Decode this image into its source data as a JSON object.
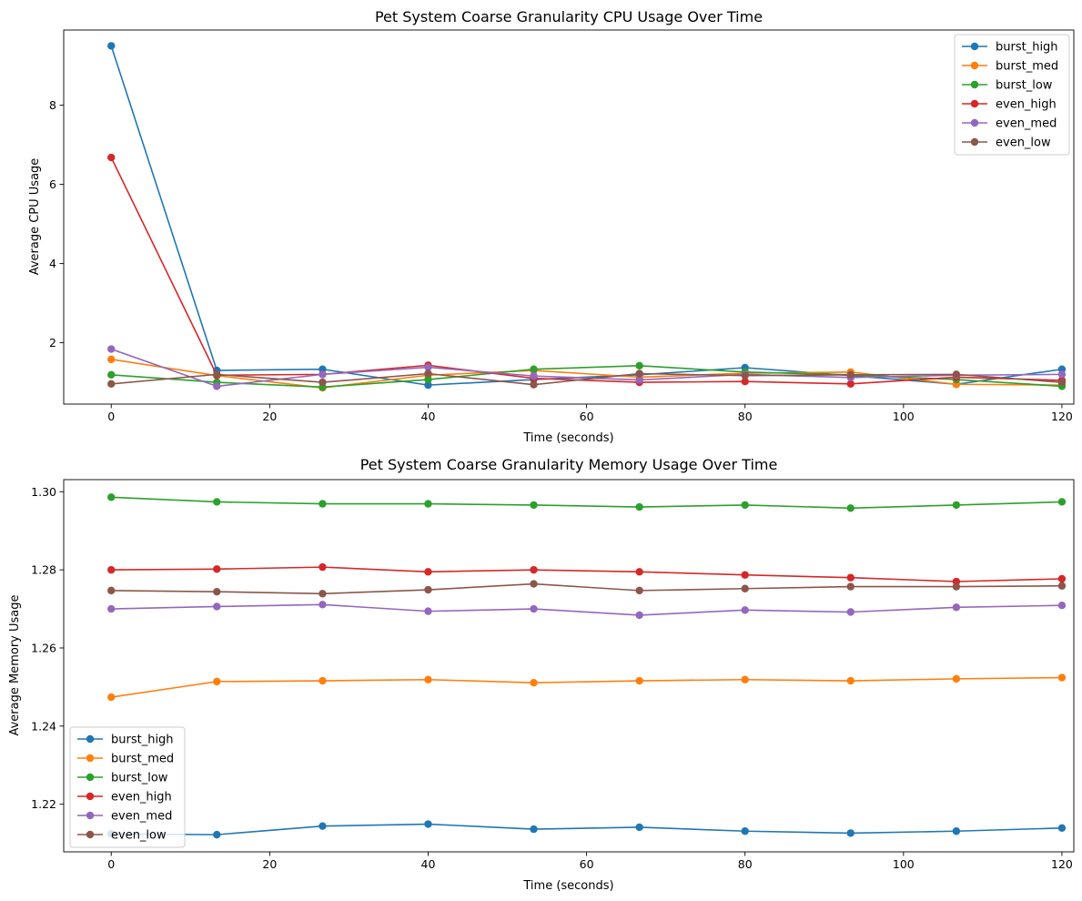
{
  "chart_data": [
    {
      "type": "line",
      "title": "Pet System Coarse Granularity CPU Usage Over Time",
      "xlabel": "Time (seconds)",
      "ylabel": "Average CPU Usage",
      "xlim": [
        -6,
        121.5
      ],
      "ylim": [
        0.45,
        9.9
      ],
      "xticks": [
        0,
        20,
        40,
        60,
        80,
        100,
        120
      ],
      "yticks": [
        2,
        4,
        6,
        8
      ],
      "ytick_decimals": 0,
      "grid": false,
      "legend_position": "upper right",
      "x": [
        0,
        13.33,
        26.67,
        40,
        53.33,
        66.67,
        80,
        93.33,
        106.67,
        120
      ],
      "series": [
        {
          "name": "burst_high",
          "color": "#1f77b4",
          "values": [
            9.5,
            1.3,
            1.33,
            0.93,
            1.07,
            1.19,
            1.37,
            1.17,
            0.95,
            1.33
          ]
        },
        {
          "name": "burst_med",
          "color": "#ff7f0e",
          "values": [
            1.58,
            1.17,
            0.86,
            1.18,
            1.3,
            1.13,
            1.23,
            1.26,
            0.95,
            0.93
          ]
        },
        {
          "name": "burst_low",
          "color": "#2ca02c",
          "values": [
            1.19,
            1.0,
            0.88,
            1.07,
            1.33,
            1.42,
            1.26,
            1.19,
            1.07,
            0.9
          ]
        },
        {
          "name": "even_high",
          "color": "#d62728",
          "values": [
            6.68,
            1.18,
            1.2,
            1.43,
            1.1,
            1.0,
            1.02,
            0.96,
            1.13,
            1.05
          ]
        },
        {
          "name": "even_med",
          "color": "#9467bd",
          "values": [
            1.84,
            0.9,
            1.2,
            1.38,
            1.16,
            1.06,
            1.2,
            1.12,
            1.18,
            1.2
          ]
        },
        {
          "name": "even_low",
          "color": "#8c564b",
          "values": [
            0.96,
            1.2,
            1.0,
            1.22,
            0.94,
            1.22,
            1.17,
            1.19,
            1.2,
            1.0
          ]
        }
      ]
    },
    {
      "type": "line",
      "title": "Pet System Coarse Granularity Memory Usage Over Time",
      "xlabel": "Time (seconds)",
      "ylabel": "Average Memory Usage",
      "xlim": [
        -6,
        121.5
      ],
      "ylim": [
        1.2078,
        1.3031
      ],
      "xticks": [
        0,
        20,
        40,
        60,
        80,
        100,
        120
      ],
      "yticks": [
        1.22,
        1.24,
        1.26,
        1.28,
        1.3
      ],
      "ytick_decimals": 2,
      "grid": false,
      "legend_position": "lower left",
      "x": [
        0,
        13.33,
        26.67,
        40,
        53.33,
        66.67,
        80,
        93.33,
        106.67,
        120
      ],
      "series": [
        {
          "name": "burst_high",
          "color": "#1f77b4",
          "values": [
            1.2124,
            1.2122,
            1.2144,
            1.2149,
            1.2136,
            1.2141,
            1.2131,
            1.2126,
            1.2131,
            1.2139
          ]
        },
        {
          "name": "burst_med",
          "color": "#ff7f0e",
          "values": [
            1.2474,
            1.2514,
            1.2516,
            1.2519,
            1.2511,
            1.2516,
            1.2519,
            1.2516,
            1.2521,
            1.2524
          ]
        },
        {
          "name": "burst_low",
          "color": "#2ca02c",
          "values": [
            1.2986,
            1.2974,
            1.2969,
            1.2969,
            1.2966,
            1.2961,
            1.2966,
            1.2958,
            1.2966,
            1.2974
          ]
        },
        {
          "name": "even_high",
          "color": "#d62728",
          "values": [
            1.28,
            1.2802,
            1.2807,
            1.2795,
            1.28,
            1.2795,
            1.2787,
            1.278,
            1.277,
            1.2777
          ]
        },
        {
          "name": "even_med",
          "color": "#9467bd",
          "values": [
            1.27,
            1.2706,
            1.2711,
            1.2694,
            1.27,
            1.2684,
            1.2697,
            1.2692,
            1.2704,
            1.2709
          ]
        },
        {
          "name": "even_low",
          "color": "#8c564b",
          "values": [
            1.2747,
            1.2744,
            1.2739,
            1.2749,
            1.2764,
            1.2747,
            1.2752,
            1.2757,
            1.2757,
            1.2759
          ]
        }
      ]
    }
  ]
}
